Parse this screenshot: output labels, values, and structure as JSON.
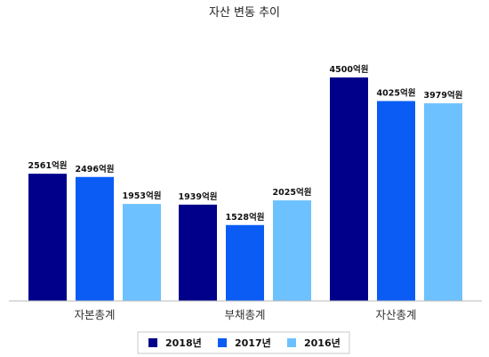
{
  "chart_data": {
    "type": "bar",
    "title": "자산 변동 추이",
    "categories": [
      "자본총계",
      "부채총계",
      "자산총계"
    ],
    "series": [
      {
        "name": "2018년",
        "color": "#00008B",
        "values": [
          2561,
          1939,
          4500
        ],
        "labels": [
          "2561억원",
          "1939억원",
          "4500억원"
        ]
      },
      {
        "name": "2017년",
        "color": "#0A5CF5",
        "values": [
          2496,
          1528,
          4025
        ],
        "labels": [
          "2496억원",
          "1528억원",
          "4025억원"
        ]
      },
      {
        "name": "2016년",
        "color": "#6EC1FF",
        "values": [
          1953,
          2025,
          3979
        ],
        "labels": [
          "1953억원",
          "2025억원",
          "3979억원"
        ]
      }
    ],
    "ylim": [
      0,
      5000
    ],
    "grid": false,
    "legend": "bottom"
  }
}
